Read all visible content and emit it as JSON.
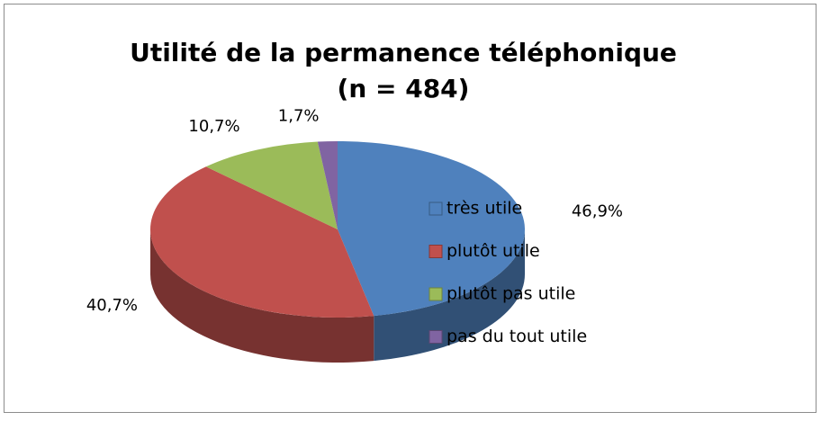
{
  "chart_data": {
    "type": "pie",
    "title": [
      "Utilité de la permanence téléphonique",
      "(n = 484)"
    ],
    "categories": [
      "très utile",
      "plutôt utile",
      "plutôt pas utile",
      "pas du tout utile"
    ],
    "values": [
      46.9,
      40.7,
      10.7,
      1.7
    ],
    "value_labels": [
      "46,9%",
      "40,7%",
      "10,7%",
      "1,7%"
    ],
    "colors": [
      "#4f81bd",
      "#c0504d",
      "#9bbb59",
      "#8064a2"
    ],
    "legend": "right"
  }
}
